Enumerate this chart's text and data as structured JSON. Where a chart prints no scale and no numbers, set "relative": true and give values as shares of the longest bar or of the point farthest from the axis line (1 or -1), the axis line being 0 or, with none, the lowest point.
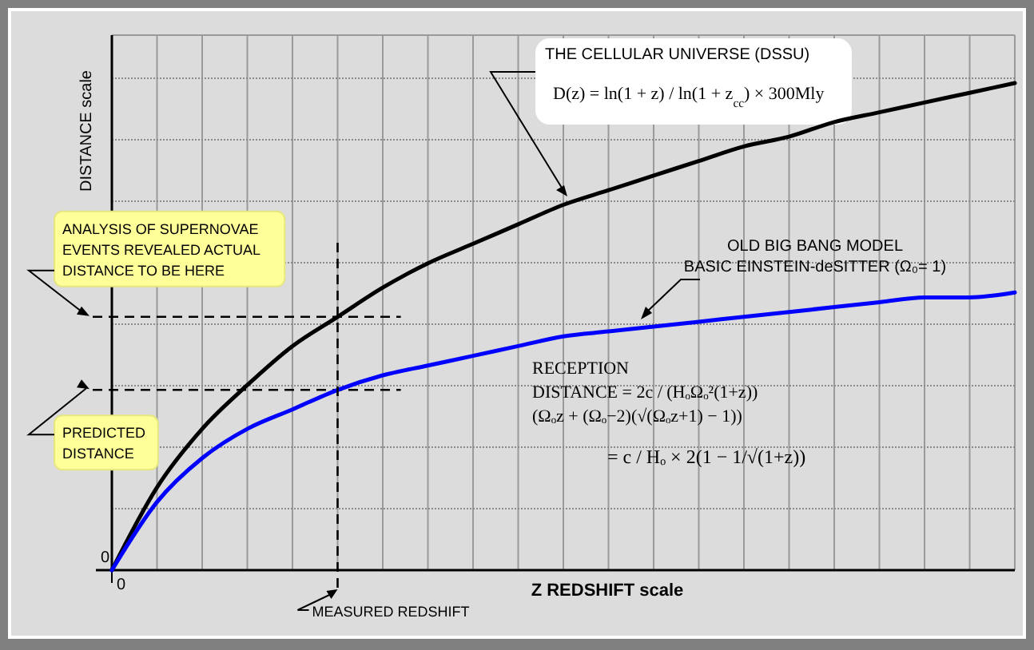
{
  "chart_data": {
    "type": "line",
    "relative": true,
    "xlabel": "Z REDSHIFT scale",
    "ylabel": "DISTANCE scale",
    "categories": [
      null,
      null,
      null,
      null,
      null,
      null,
      null,
      null,
      null,
      null,
      null,
      null,
      null,
      null,
      null,
      null,
      null,
      null,
      null,
      null,
      null
    ],
    "grid": true,
    "marker": "none",
    "line_style": "solid",
    "series": [
      {
        "name": "THE CELLULAR UNIVERSE  (DSSU)",
        "color": "#000000",
        "values": [
          0,
          0.17,
          0.29,
          0.38,
          0.46,
          0.52,
          0.58,
          0.63,
          0.67,
          0.71,
          0.75,
          0.78,
          0.81,
          0.84,
          0.87,
          0.89,
          0.92,
          0.94,
          0.96,
          0.98,
          1
        ]
      },
      {
        "name": "OLD BIG BANG MODEL\nBASIC EINSTEIN-deSITTER  (Ω₀= 1)",
        "color": "#0000ff",
        "values": [
          0,
          0.14,
          0.23,
          0.29,
          0.33,
          0.37,
          0.4,
          0.42,
          0.44,
          0.46,
          0.48,
          0.49,
          0.5,
          0.51,
          0.52,
          0.53,
          0.54,
          0.55,
          0.56,
          0.56,
          0.57
        ]
      }
    ],
    "ref_lines": [
      {
        "axis": "y",
        "value": 0.52,
        "label": "ANALYSIS OF SUPERNOVAE\nEVENTS REVEALED ACTUAL\nDISTANCE TO BE HERE",
        "color": "#000000",
        "line_style": "dashed"
      },
      {
        "axis": "y",
        "value": 0.37,
        "label": "PREDICTED\nDISTANCE",
        "color": "#000000",
        "line_style": "dashed"
      }
    ],
    "annotations": [
      "0",
      "D(z) = ln(1 + z) / ln(1 + z$_{cc}$) × 300Mly",
      "RECEPTION\nDISTANCE = 2c / (HₒΩₒ²(1+z))\n(Ωₒz + (Ωₒ−2)(√(Ωₒz+1) − 1))",
      "= c / Hₒ × 2(1 − 1/√(1+z))",
      "0",
      "MEASURED REDSHIFT"
    ]
  }
}
